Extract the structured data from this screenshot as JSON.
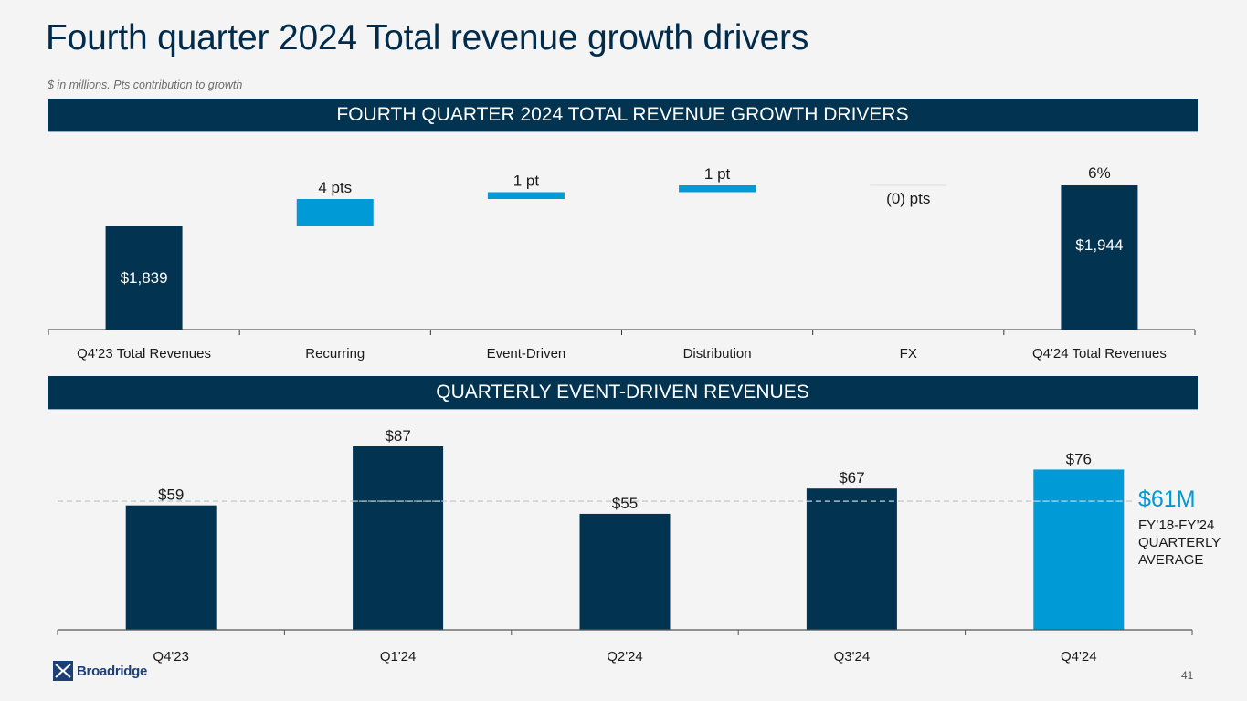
{
  "header": {
    "title": "Fourth quarter 2024 Total revenue growth drivers",
    "subtitle": "$ in millions. Pts contribution to growth"
  },
  "colors": {
    "navy": "#023451",
    "accent_blue": "#009ad6",
    "background": "#f4f4f4",
    "average_line": "#bfbfbf"
  },
  "chart_data": [
    {
      "type": "bar",
      "subtype": "waterfall",
      "title": "FOURTH QUARTER 2024 TOTAL REVENUE GROWTH DRIVERS",
      "categories": [
        "Q4'23 Total Revenues",
        "Recurring",
        "Event-Driven",
        "Distribution",
        "FX",
        "Q4'24 Total Revenues"
      ],
      "values": [
        1839,
        4,
        1,
        1,
        0,
        1944
      ],
      "units": [
        "$M",
        "pts",
        "pts",
        "pts",
        "pts",
        "$M"
      ],
      "bar_roles": [
        "total",
        "delta",
        "delta",
        "delta",
        "delta",
        "total"
      ],
      "inside_labels": [
        "$1,839",
        "",
        "",
        "",
        "",
        "$1,944"
      ],
      "top_labels": [
        "",
        "4 pts",
        "1 pt",
        "1 pt",
        "(0) pts",
        "6%"
      ],
      "growth_pct": 6,
      "xlabel": "",
      "ylabel": "",
      "grid": false
    },
    {
      "type": "bar",
      "title": "QUARTERLY EVENT-DRIVEN REVENUES",
      "categories": [
        "Q4'23",
        "Q1'24",
        "Q2'24",
        "Q3'24",
        "Q4'24"
      ],
      "values": [
        59,
        87,
        55,
        67,
        76
      ],
      "labels": [
        "$59",
        "$87",
        "$55",
        "$67",
        "$76"
      ],
      "highlight_index": 4,
      "ylim": [
        0,
        90
      ],
      "reference_line": {
        "value": 61,
        "label_value": "$61M",
        "label_lines": [
          "FY’18-FY’24",
          "QUARTERLY",
          "AVERAGE"
        ]
      },
      "xlabel": "",
      "ylabel": "",
      "grid": false
    }
  ],
  "footer": {
    "brand": "Broadridge",
    "page_number": "41"
  }
}
